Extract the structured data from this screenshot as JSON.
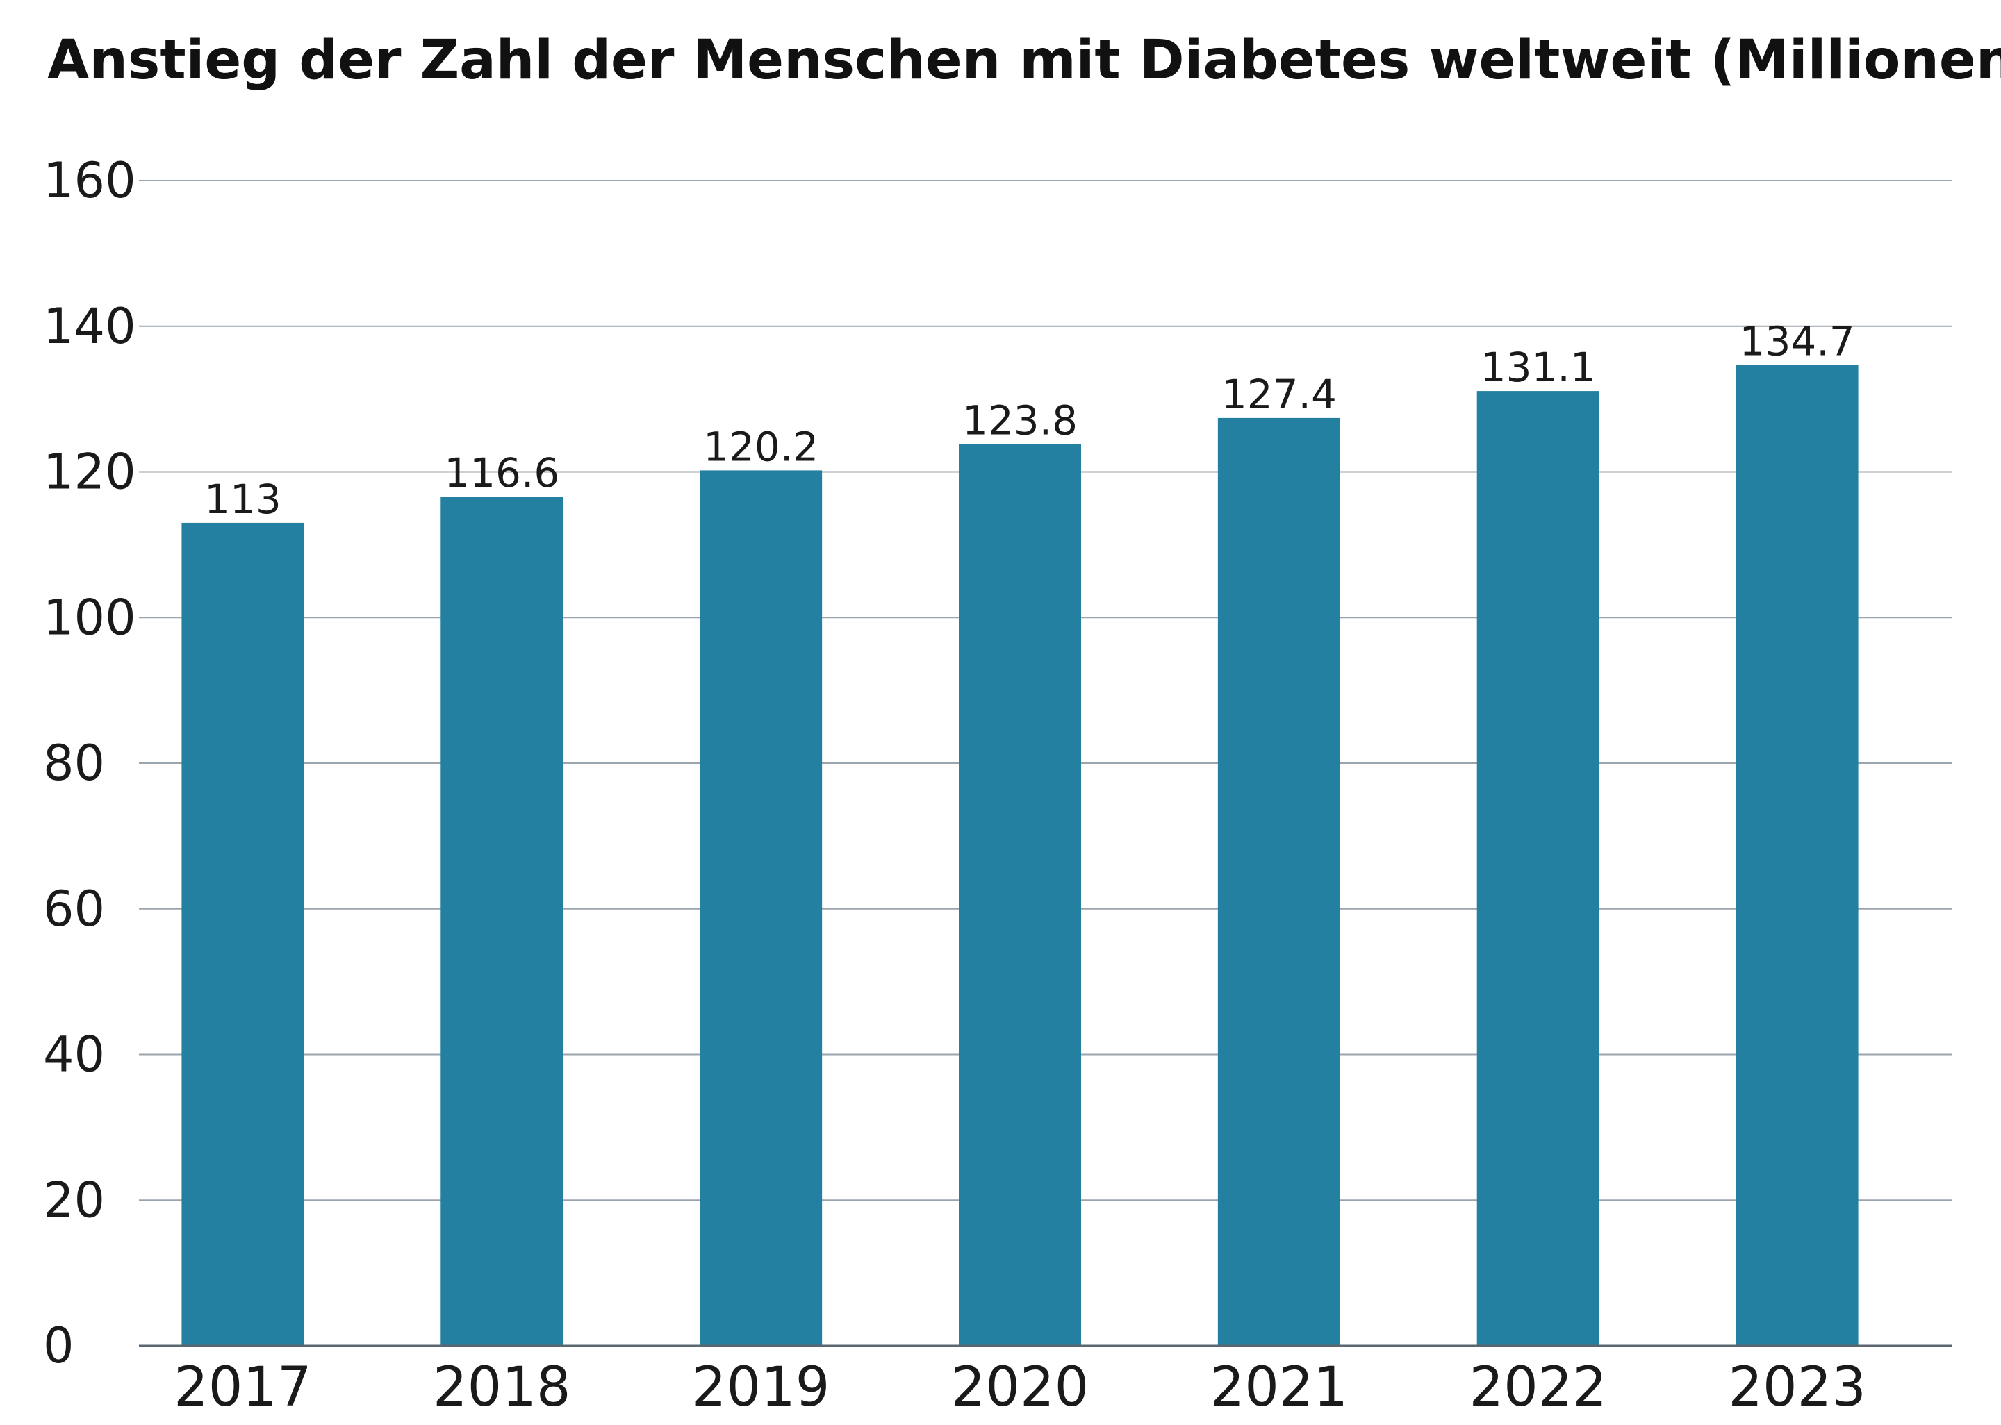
{
  "chart_data": {
    "type": "bar",
    "title": "Anstieg der Zahl der Menschen mit Diabetes weltweit (Millionen)",
    "xlabel": "",
    "ylabel": "",
    "categories": [
      "2017",
      "2018",
      "2019",
      "2020",
      "2021",
      "2022",
      "2023"
    ],
    "values": [
      113,
      116.6,
      120.2,
      123.8,
      127.4,
      131.1,
      134.7
    ],
    "value_labels": [
      "113",
      "116.6",
      "120.2",
      "123.8",
      "127.4",
      "131.1",
      "134.7"
    ],
    "ylim": [
      0,
      160
    ],
    "yticks": [
      0,
      20,
      40,
      60,
      80,
      100,
      120,
      140,
      160
    ],
    "ytick_labels": [
      "0",
      "20",
      "40",
      "60",
      "80",
      "100",
      "120",
      "140",
      "160"
    ],
    "grid": true,
    "legend": "none",
    "bar_color": "#2380a1",
    "grid_color": "#9aa4ad"
  }
}
